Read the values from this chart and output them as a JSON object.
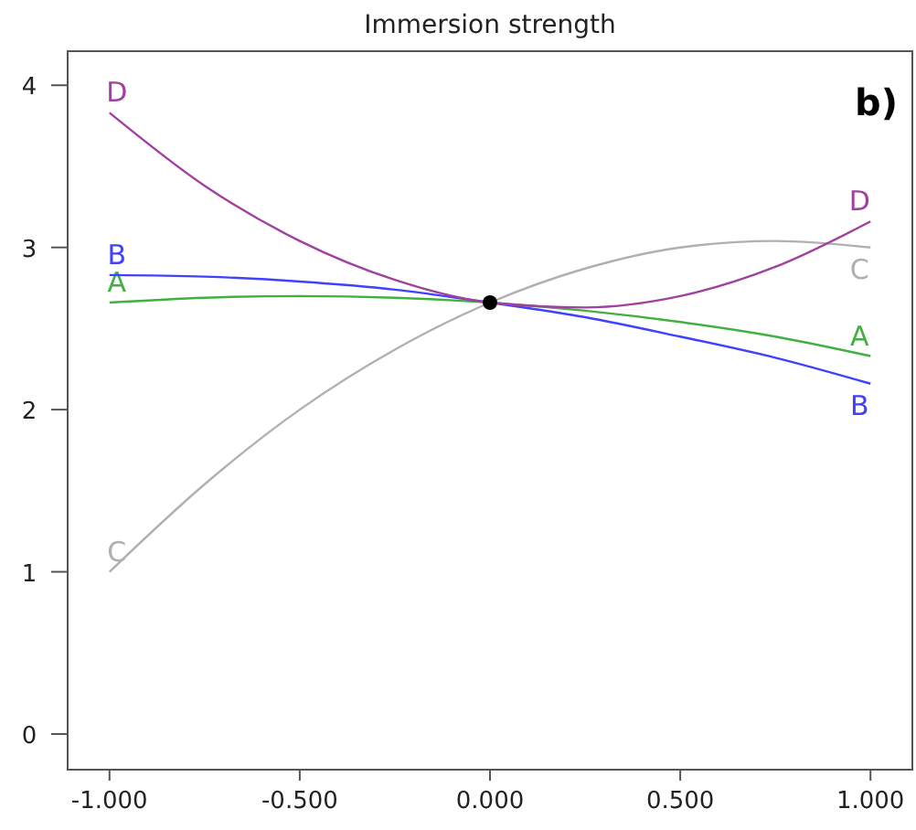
{
  "chart_data": {
    "type": "line",
    "title": "Immersion strength",
    "annotations": [
      "b)"
    ],
    "x": [
      -1,
      -0.75,
      -0.5,
      -0.25,
      0,
      0.25,
      0.5,
      0.75,
      1
    ],
    "series": [
      {
        "name": "A",
        "color": "#40b040",
        "values": [
          2.66,
          2.69,
          2.7,
          2.69,
          2.66,
          2.61,
          2.54,
          2.45,
          2.33
        ]
      },
      {
        "name": "B",
        "color": "#4040ff",
        "values": [
          2.83,
          2.82,
          2.79,
          2.74,
          2.66,
          2.57,
          2.45,
          2.32,
          2.16
        ]
      },
      {
        "name": "C",
        "color": "#b0b0b0",
        "values": [
          1.0,
          1.54,
          2.0,
          2.37,
          2.66,
          2.87,
          3.0,
          3.04,
          3.0
        ]
      },
      {
        "name": "D",
        "color": "#a040a0",
        "values": [
          3.83,
          3.38,
          3.04,
          2.8,
          2.66,
          2.63,
          2.7,
          2.88,
          3.16
        ]
      },
      {
        "type": "scatter",
        "color": "#000000",
        "x": [
          0
        ],
        "values": [
          2.66
        ],
        "marker": "circle"
      }
    ],
    "xlim": [
      -1.11,
      1.11
    ],
    "xticks": [
      {
        "value": -1,
        "label": "-1.000"
      },
      {
        "value": -0.5,
        "label": "-0.500"
      },
      {
        "value": 0,
        "label": "0.000"
      },
      {
        "value": 0.5,
        "label": "0.500"
      },
      {
        "value": 1,
        "label": "1.000"
      }
    ],
    "ylim": [
      -0.22,
      4.21
    ],
    "yticks": [
      0,
      1,
      2,
      3,
      4
    ],
    "grid": false
  }
}
